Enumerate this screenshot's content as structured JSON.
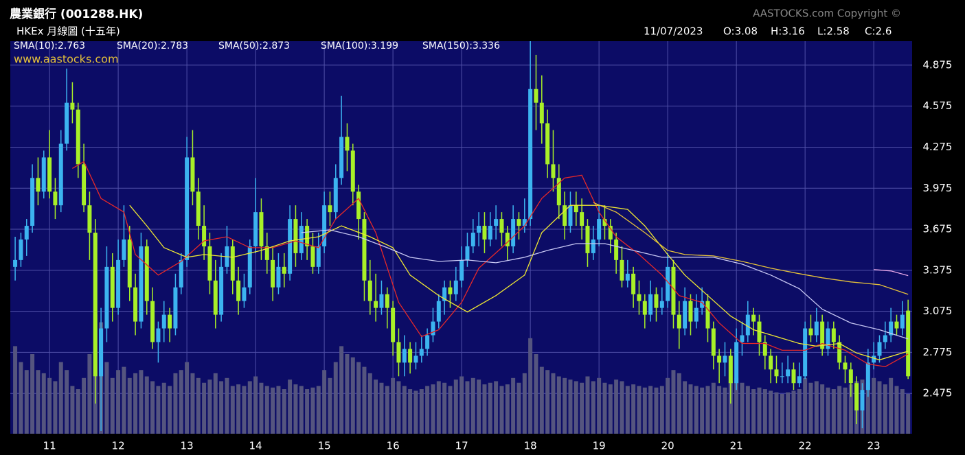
{
  "chart_data": {
    "type": "candlestick",
    "title": "農業銀行 (001288.HK)",
    "subtitle": "HKEx 月線圖 (十五年)",
    "copyright": "AASTOCKS.com Copyright ©",
    "website": "www.aastocks.com",
    "last_bar": {
      "date": "11/07/2023",
      "labels": [
        "O:3.08",
        "H:3.16",
        "L:2.58",
        "C:2.6"
      ]
    },
    "up_color": "#3cb4f0",
    "down_color": "#a8f028",
    "volume_color": "#55557f",
    "xlim": [
      -0.85,
      156.7
    ],
    "xticks": [
      {
        "value": 6,
        "label": "11"
      },
      {
        "value": 18,
        "label": "12"
      },
      {
        "value": 30,
        "label": "13"
      },
      {
        "value": 42,
        "label": "14"
      },
      {
        "value": 54,
        "label": "15"
      },
      {
        "value": 66,
        "label": "16"
      },
      {
        "value": 78,
        "label": "17"
      },
      {
        "value": 90,
        "label": "18"
      },
      {
        "value": 102,
        "label": "19"
      },
      {
        "value": 114,
        "label": "20"
      },
      {
        "value": 126,
        "label": "21"
      },
      {
        "value": 138,
        "label": "22"
      },
      {
        "value": 150,
        "label": "23"
      }
    ],
    "ylim": [
      2.18,
      5.05
    ],
    "yticks": [
      2.475,
      2.775,
      3.075,
      3.375,
      3.675,
      3.975,
      4.275,
      4.575,
      4.875
    ],
    "volume_lim": [
      0,
      100
    ],
    "grid": true,
    "candles": [
      [
        3.4,
        3.62,
        3.3,
        3.45,
        55
      ],
      [
        3.45,
        3.65,
        3.4,
        3.6,
        45
      ],
      [
        3.6,
        3.75,
        3.48,
        3.7,
        40
      ],
      [
        3.7,
        4.15,
        3.65,
        4.05,
        50
      ],
      [
        4.05,
        4.2,
        3.85,
        3.95,
        40
      ],
      [
        3.95,
        4.25,
        3.9,
        4.2,
        38
      ],
      [
        4.2,
        4.4,
        3.9,
        3.95,
        35
      ],
      [
        3.95,
        4.05,
        3.75,
        3.85,
        33
      ],
      [
        3.85,
        4.4,
        3.8,
        4.3,
        45
      ],
      [
        4.3,
        4.85,
        4.25,
        4.6,
        40
      ],
      [
        4.6,
        4.75,
        4.45,
        4.55,
        30
      ],
      [
        4.55,
        4.6,
        4.05,
        4.15,
        28
      ],
      [
        4.15,
        4.3,
        3.8,
        3.85,
        35
      ],
      [
        3.85,
        3.95,
        3.45,
        3.65,
        50
      ],
      [
        3.65,
        3.75,
        2.4,
        2.6,
        75
      ],
      [
        2.6,
        3.1,
        2.2,
        2.95,
        70
      ],
      [
        2.95,
        3.55,
        2.85,
        3.4,
        45
      ],
      [
        3.4,
        3.5,
        3.0,
        3.1,
        35
      ],
      [
        3.1,
        3.6,
        3.05,
        3.45,
        40
      ],
      [
        3.45,
        3.85,
        3.4,
        3.6,
        42
      ],
      [
        3.6,
        3.7,
        3.15,
        3.25,
        35
      ],
      [
        3.25,
        3.35,
        2.9,
        3.0,
        38
      ],
      [
        3.0,
        3.65,
        2.95,
        3.55,
        40
      ],
      [
        3.55,
        3.6,
        3.05,
        3.15,
        36
      ],
      [
        3.15,
        3.25,
        2.8,
        2.85,
        33
      ],
      [
        2.85,
        3.0,
        2.7,
        2.95,
        30
      ],
      [
        2.95,
        3.15,
        2.85,
        3.05,
        32
      ],
      [
        3.05,
        3.1,
        2.85,
        2.95,
        30
      ],
      [
        2.95,
        3.35,
        2.9,
        3.25,
        38
      ],
      [
        3.25,
        3.5,
        3.2,
        3.45,
        40
      ],
      [
        3.45,
        4.35,
        3.4,
        4.2,
        45
      ],
      [
        4.2,
        4.4,
        3.85,
        3.95,
        38
      ],
      [
        3.95,
        4.05,
        3.6,
        3.7,
        35
      ],
      [
        3.7,
        3.85,
        3.45,
        3.55,
        32
      ],
      [
        3.55,
        3.65,
        3.2,
        3.3,
        34
      ],
      [
        3.3,
        3.45,
        2.95,
        3.05,
        38
      ],
      [
        3.05,
        3.5,
        3.0,
        3.4,
        33
      ],
      [
        3.4,
        3.7,
        3.35,
        3.55,
        35
      ],
      [
        3.55,
        3.6,
        3.2,
        3.3,
        30
      ],
      [
        3.3,
        3.4,
        3.05,
        3.15,
        31
      ],
      [
        3.15,
        3.35,
        3.1,
        3.25,
        30
      ],
      [
        3.25,
        3.6,
        3.2,
        3.55,
        33
      ],
      [
        3.55,
        4.05,
        3.5,
        3.8,
        36
      ],
      [
        3.8,
        3.9,
        3.45,
        3.55,
        32
      ],
      [
        3.55,
        3.65,
        3.35,
        3.45,
        30
      ],
      [
        3.45,
        3.55,
        3.15,
        3.25,
        29
      ],
      [
        3.25,
        3.5,
        3.2,
        3.4,
        30
      ],
      [
        3.4,
        3.5,
        3.25,
        3.35,
        28
      ],
      [
        3.35,
        3.85,
        3.3,
        3.75,
        34
      ],
      [
        3.75,
        3.85,
        3.4,
        3.5,
        31
      ],
      [
        3.5,
        3.8,
        3.45,
        3.7,
        30
      ],
      [
        3.7,
        3.75,
        3.45,
        3.55,
        28
      ],
      [
        3.55,
        3.65,
        3.35,
        3.4,
        29
      ],
      [
        3.4,
        3.65,
        3.35,
        3.55,
        30
      ],
      [
        3.55,
        3.95,
        3.5,
        3.85,
        40
      ],
      [
        3.85,
        3.95,
        3.7,
        3.8,
        35
      ],
      [
        3.8,
        4.15,
        3.75,
        4.05,
        45
      ],
      [
        4.05,
        4.65,
        4.0,
        4.35,
        55
      ],
      [
        4.35,
        4.45,
        4.1,
        4.25,
        50
      ],
      [
        4.25,
        4.3,
        3.85,
        3.95,
        48
      ],
      [
        3.95,
        4.0,
        3.6,
        3.75,
        45
      ],
      [
        3.75,
        3.8,
        3.15,
        3.3,
        42
      ],
      [
        3.3,
        3.45,
        3.05,
        3.15,
        38
      ],
      [
        3.15,
        3.35,
        3.0,
        3.1,
        34
      ],
      [
        3.1,
        3.3,
        3.05,
        3.2,
        32
      ],
      [
        3.2,
        3.25,
        2.95,
        3.1,
        30
      ],
      [
        3.1,
        3.15,
        2.75,
        2.85,
        35
      ],
      [
        2.85,
        2.95,
        2.6,
        2.7,
        33
      ],
      [
        2.7,
        2.9,
        2.6,
        2.8,
        30
      ],
      [
        2.8,
        2.85,
        2.62,
        2.7,
        28
      ],
      [
        2.7,
        2.85,
        2.65,
        2.75,
        27
      ],
      [
        2.75,
        2.9,
        2.7,
        2.8,
        28
      ],
      [
        2.8,
        2.95,
        2.75,
        2.9,
        30
      ],
      [
        2.9,
        3.1,
        2.85,
        3.0,
        31
      ],
      [
        3.0,
        3.2,
        2.95,
        3.15,
        33
      ],
      [
        3.15,
        3.3,
        3.05,
        3.25,
        32
      ],
      [
        3.25,
        3.3,
        3.1,
        3.2,
        30
      ],
      [
        3.2,
        3.4,
        3.15,
        3.3,
        34
      ],
      [
        3.3,
        3.55,
        3.25,
        3.45,
        36
      ],
      [
        3.45,
        3.65,
        3.4,
        3.55,
        33
      ],
      [
        3.55,
        3.75,
        3.5,
        3.65,
        35
      ],
      [
        3.65,
        3.8,
        3.55,
        3.7,
        34
      ],
      [
        3.7,
        3.8,
        3.5,
        3.6,
        31
      ],
      [
        3.6,
        3.8,
        3.55,
        3.7,
        32
      ],
      [
        3.7,
        3.85,
        3.6,
        3.75,
        33
      ],
      [
        3.75,
        3.8,
        3.55,
        3.65,
        30
      ],
      [
        3.65,
        3.7,
        3.45,
        3.55,
        31
      ],
      [
        3.55,
        3.85,
        3.5,
        3.75,
        35
      ],
      [
        3.75,
        3.8,
        3.6,
        3.7,
        32
      ],
      [
        3.7,
        3.9,
        3.65,
        3.75,
        38
      ],
      [
        3.75,
        5.05,
        3.7,
        4.7,
        60
      ],
      [
        4.7,
        4.95,
        4.4,
        4.6,
        50
      ],
      [
        4.6,
        4.8,
        4.3,
        4.45,
        42
      ],
      [
        4.45,
        4.55,
        4.05,
        4.15,
        40
      ],
      [
        4.15,
        4.4,
        3.95,
        4.05,
        38
      ],
      [
        4.05,
        4.15,
        3.75,
        3.85,
        36
      ],
      [
        3.85,
        3.95,
        3.6,
        3.7,
        35
      ],
      [
        3.7,
        3.95,
        3.65,
        3.85,
        34
      ],
      [
        3.85,
        3.95,
        3.7,
        3.8,
        33
      ],
      [
        3.8,
        3.9,
        3.6,
        3.7,
        32
      ],
      [
        3.7,
        3.75,
        3.4,
        3.5,
        36
      ],
      [
        3.5,
        3.7,
        3.45,
        3.6,
        33
      ],
      [
        3.6,
        3.85,
        3.55,
        3.75,
        35
      ],
      [
        3.75,
        3.85,
        3.6,
        3.7,
        32
      ],
      [
        3.7,
        3.75,
        3.5,
        3.6,
        31
      ],
      [
        3.6,
        3.65,
        3.35,
        3.45,
        34
      ],
      [
        3.45,
        3.55,
        3.25,
        3.3,
        33
      ],
      [
        3.3,
        3.45,
        3.25,
        3.35,
        30
      ],
      [
        3.35,
        3.4,
        3.1,
        3.2,
        31
      ],
      [
        3.2,
        3.3,
        3.05,
        3.15,
        30
      ],
      [
        3.15,
        3.2,
        2.95,
        3.05,
        29
      ],
      [
        3.05,
        3.3,
        3.0,
        3.2,
        30
      ],
      [
        3.2,
        3.25,
        3.0,
        3.1,
        29
      ],
      [
        3.1,
        3.25,
        3.05,
        3.15,
        30
      ],
      [
        3.15,
        3.5,
        3.1,
        3.4,
        35
      ],
      [
        3.4,
        3.45,
        2.95,
        3.05,
        40
      ],
      [
        3.05,
        3.15,
        2.8,
        2.95,
        38
      ],
      [
        2.95,
        3.25,
        2.9,
        3.15,
        33
      ],
      [
        3.15,
        3.2,
        2.9,
        3.0,
        31
      ],
      [
        3.0,
        3.2,
        2.95,
        3.1,
        30
      ],
      [
        3.1,
        3.25,
        3.05,
        3.15,
        29
      ],
      [
        3.15,
        3.2,
        2.85,
        2.95,
        30
      ],
      [
        2.95,
        3.0,
        2.65,
        2.75,
        32
      ],
      [
        2.75,
        2.8,
        2.55,
        2.7,
        30
      ],
      [
        2.7,
        2.85,
        2.6,
        2.75,
        29
      ],
      [
        2.75,
        2.8,
        2.4,
        2.55,
        33
      ],
      [
        2.55,
        2.95,
        2.5,
        2.85,
        35
      ],
      [
        2.85,
        3.0,
        2.75,
        2.9,
        32
      ],
      [
        2.9,
        3.15,
        2.85,
        3.05,
        30
      ],
      [
        3.05,
        3.1,
        2.9,
        3.0,
        28
      ],
      [
        3.0,
        3.05,
        2.75,
        2.85,
        29
      ],
      [
        2.85,
        2.9,
        2.65,
        2.75,
        28
      ],
      [
        2.75,
        2.8,
        2.55,
        2.65,
        27
      ],
      [
        2.65,
        2.75,
        2.55,
        2.6,
        26
      ],
      [
        2.6,
        2.7,
        2.55,
        2.6,
        25
      ],
      [
        2.6,
        2.75,
        2.55,
        2.65,
        26
      ],
      [
        2.65,
        2.7,
        2.5,
        2.55,
        27
      ],
      [
        2.55,
        2.7,
        2.52,
        2.6,
        28
      ],
      [
        2.6,
        3.0,
        2.58,
        2.95,
        35
      ],
      [
        2.95,
        3.05,
        2.85,
        2.9,
        32
      ],
      [
        2.9,
        3.1,
        2.85,
        3.0,
        33
      ],
      [
        3.0,
        3.05,
        2.75,
        2.8,
        31
      ],
      [
        2.8,
        3.0,
        2.75,
        2.95,
        29
      ],
      [
        2.95,
        3.0,
        2.8,
        2.85,
        28
      ],
      [
        2.85,
        2.9,
        2.65,
        2.7,
        30
      ],
      [
        2.7,
        2.75,
        2.55,
        2.65,
        29
      ],
      [
        2.65,
        2.7,
        2.45,
        2.55,
        31
      ],
      [
        2.55,
        2.6,
        2.25,
        2.35,
        33
      ],
      [
        2.35,
        2.55,
        2.22,
        2.5,
        34
      ],
      [
        2.5,
        2.8,
        2.45,
        2.7,
        32
      ],
      [
        2.7,
        2.85,
        2.65,
        2.75,
        35
      ],
      [
        2.75,
        2.9,
        2.7,
        2.85,
        33
      ],
      [
        2.85,
        3.0,
        2.8,
        2.9,
        31
      ],
      [
        2.9,
        3.1,
        2.85,
        3.0,
        35
      ],
      [
        3.0,
        3.05,
        2.9,
        2.95,
        30
      ],
      [
        2.95,
        3.15,
        2.9,
        3.05,
        28
      ],
      [
        3.08,
        3.16,
        2.58,
        2.6,
        25
      ]
    ],
    "series": [
      {
        "name": "SMA(10):2.763",
        "color": "#e82828",
        "x": [
          10,
          12,
          15,
          19,
          21,
          25,
          29,
          33,
          37,
          41,
          45,
          49,
          53,
          56,
          60,
          63,
          67,
          71,
          74,
          78,
          81,
          85,
          89,
          92,
          96,
          99,
          102,
          105,
          109,
          113,
          116,
          120,
          123,
          127,
          131,
          134,
          138,
          141,
          145,
          149,
          152,
          156
        ],
        "values": [
          4.12,
          4.17,
          3.9,
          3.8,
          3.49,
          3.34,
          3.44,
          3.59,
          3.62,
          3.54,
          3.54,
          3.59,
          3.54,
          3.75,
          3.9,
          3.65,
          3.14,
          2.89,
          2.94,
          3.14,
          3.39,
          3.54,
          3.7,
          3.9,
          4.05,
          4.07,
          3.8,
          3.62,
          3.49,
          3.34,
          3.19,
          3.14,
          2.99,
          2.84,
          2.84,
          2.79,
          2.79,
          2.84,
          2.79,
          2.69,
          2.67,
          2.763
        ]
      },
      {
        "name": "SMA(20):2.783",
        "color": "#f0e832",
        "x": [
          20,
          23,
          26,
          30,
          33,
          38,
          43,
          48,
          53,
          57,
          62,
          66,
          69,
          74,
          79,
          84,
          89,
          92,
          97,
          102,
          107,
          110,
          114,
          117,
          121,
          125,
          129,
          133,
          137,
          140,
          144,
          147,
          151,
          156
        ],
        "values": [
          3.85,
          3.7,
          3.54,
          3.47,
          3.49,
          3.47,
          3.52,
          3.59,
          3.62,
          3.7,
          3.62,
          3.54,
          3.34,
          3.19,
          3.07,
          3.19,
          3.34,
          3.65,
          3.85,
          3.85,
          3.82,
          3.7,
          3.49,
          3.34,
          3.19,
          3.04,
          2.94,
          2.89,
          2.84,
          2.82,
          2.84,
          2.77,
          2.72,
          2.783
        ]
      },
      {
        "name": "SMA(50):2.873",
        "color": "#c8c8f4",
        "x": [
          50,
          55,
          60,
          65,
          69,
          74,
          79,
          84,
          89,
          93,
          98,
          103,
          108,
          113,
          117,
          122,
          127,
          132,
          137,
          141,
          146,
          151,
          156
        ],
        "values": [
          3.65,
          3.67,
          3.62,
          3.54,
          3.47,
          3.44,
          3.45,
          3.43,
          3.47,
          3.52,
          3.57,
          3.57,
          3.52,
          3.47,
          3.47,
          3.47,
          3.42,
          3.34,
          3.24,
          3.09,
          2.99,
          2.94,
          2.873
        ]
      },
      {
        "name": "SMA(100):3.199",
        "color": "#e6c23a",
        "x": [
          101,
          105,
          110,
          114,
          117,
          122,
          127,
          132,
          137,
          141,
          146,
          151,
          156
        ],
        "values": [
          3.87,
          3.8,
          3.65,
          3.52,
          3.49,
          3.48,
          3.44,
          3.39,
          3.35,
          3.32,
          3.29,
          3.27,
          3.199
        ]
      },
      {
        "name": "SMA(150):3.336",
        "color": "#e8a8e8",
        "x": [
          150,
          153,
          156
        ],
        "values": [
          3.38,
          3.37,
          3.336
        ]
      }
    ]
  }
}
